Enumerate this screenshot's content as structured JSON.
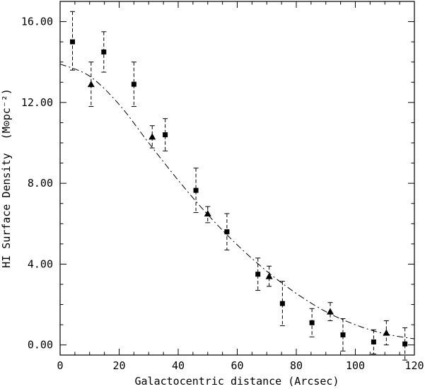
{
  "chart_data": {
    "type": "scatter",
    "xlabel": "Galactocentric distance (Arcsec)",
    "ylabel": "HI Surface Density",
    "ylabel_unit": "(M⊙pc⁻²)",
    "xlim": [
      0,
      120
    ],
    "ylim": [
      -0.5,
      17.0
    ],
    "x_ticks": [
      0,
      20,
      40,
      60,
      80,
      100,
      120
    ],
    "x_tick_labels": [
      "0",
      "20",
      "40",
      "60",
      "80",
      "100",
      "120"
    ],
    "y_ticks": [
      0,
      4,
      8,
      12,
      16
    ],
    "y_tick_labels": [
      "0.00",
      "4.00",
      "8.00",
      "12.00",
      "16.00"
    ],
    "grid": false,
    "series": [
      {
        "marker": "square",
        "color": "#000000",
        "points": [
          {
            "x": 4.2,
            "y": 15.0,
            "err_low": 1.4,
            "err_high": 1.5
          },
          {
            "x": 14.8,
            "y": 14.5,
            "err_low": 1.0,
            "err_high": 1.0
          },
          {
            "x": 25.0,
            "y": 12.9,
            "err_low": 1.1,
            "err_high": 1.1
          },
          {
            "x": 35.6,
            "y": 10.4,
            "err_low": 0.8,
            "err_high": 0.8
          },
          {
            "x": 46.0,
            "y": 7.65,
            "err_low": 1.1,
            "err_high": 1.1
          },
          {
            "x": 56.5,
            "y": 5.6,
            "err_low": 0.9,
            "err_high": 0.9
          },
          {
            "x": 67.0,
            "y": 3.5,
            "err_low": 0.8,
            "err_high": 0.8
          },
          {
            "x": 75.3,
            "y": 2.05,
            "err_low": 1.1,
            "err_high": 1.1
          },
          {
            "x": 85.3,
            "y": 1.1,
            "err_low": 0.7,
            "err_high": 0.7
          },
          {
            "x": 95.8,
            "y": 0.5,
            "err_low": 0.8,
            "err_high": 0.8
          },
          {
            "x": 106.2,
            "y": 0.15,
            "err_low": 0.6,
            "err_high": 0.6
          },
          {
            "x": 116.8,
            "y": 0.05,
            "err_low": 0.8,
            "err_high": 0.8
          }
        ]
      },
      {
        "marker": "triangle",
        "color": "#000000",
        "points": [
          {
            "x": 10.5,
            "y": 12.9,
            "err_low": 1.1,
            "err_high": 1.1
          },
          {
            "x": 31.2,
            "y": 10.3,
            "err_low": 0.55,
            "err_high": 0.55
          },
          {
            "x": 50.0,
            "y": 6.5,
            "err_low": 0.45,
            "err_high": 0.35
          },
          {
            "x": 70.8,
            "y": 3.4,
            "err_low": 0.5,
            "err_high": 0.5
          },
          {
            "x": 91.5,
            "y": 1.65,
            "err_low": 0.45,
            "err_high": 0.45
          },
          {
            "x": 110.5,
            "y": 0.6,
            "err_low": 0.6,
            "err_high": 0.6
          }
        ]
      }
    ],
    "fit_curve": {
      "style": "dash-dot",
      "x": [
        0,
        10,
        20,
        30,
        40,
        50,
        60,
        70,
        80,
        90,
        100,
        110,
        120
      ],
      "y": [
        13.9,
        13.3,
        11.9,
        10.0,
        8.15,
        6.45,
        4.95,
        3.65,
        2.55,
        1.65,
        1.0,
        0.55,
        0.3
      ]
    }
  }
}
